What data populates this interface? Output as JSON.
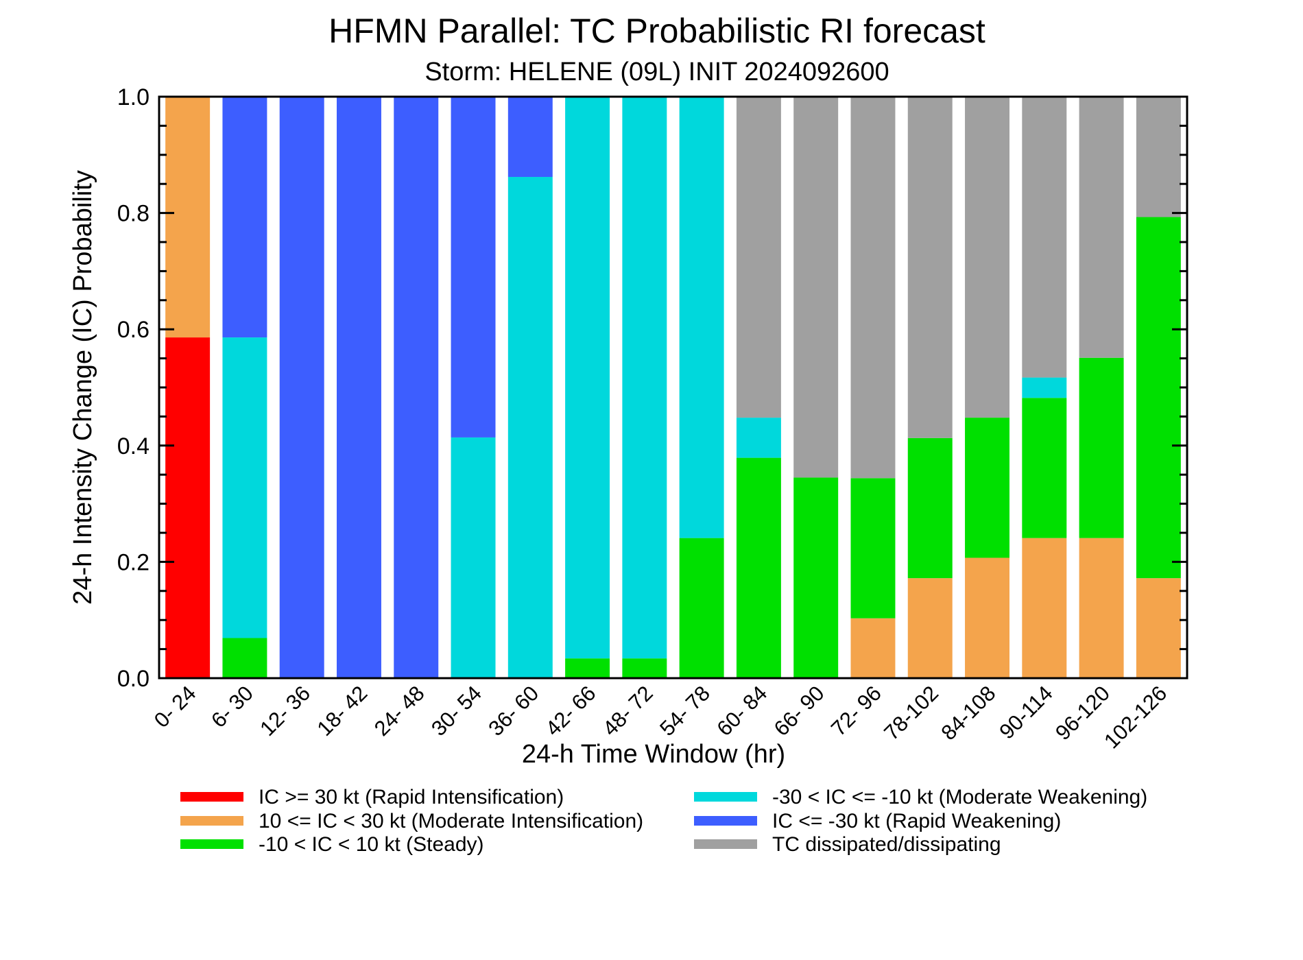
{
  "chart_data": {
    "type": "bar",
    "stacked": true,
    "title": "HFMN Parallel: TC Probabilistic RI forecast",
    "subtitle": "Storm: HELENE (09L) INIT 2024092600",
    "xlabel": "24-h Time Window (hr)",
    "ylabel": "24-h Intensity Change (IC) Probability",
    "ylim": [
      0,
      1
    ],
    "yticks": [
      "0.0",
      "0.2",
      "0.4",
      "0.6",
      "0.8",
      "1.0"
    ],
    "categories": [
      "0- 24",
      "6- 30",
      "12- 36",
      "18- 42",
      "24- 48",
      "30- 54",
      "36- 60",
      "42- 66",
      "48- 72",
      "54- 78",
      "60- 84",
      "66- 90",
      "72- 96",
      "78-102",
      "84-108",
      "90-114",
      "96-120",
      "102-126"
    ],
    "series": [
      {
        "name": "IC >= 30 kt (Rapid Intensification)",
        "color": "#ff0000",
        "values": [
          0.586,
          0,
          0,
          0,
          0,
          0,
          0,
          0,
          0,
          0,
          0,
          0,
          0,
          0,
          0,
          0,
          0,
          0
        ]
      },
      {
        "name": "10 <= IC < 30 kt (Moderate Intensification)",
        "color": "#f4a44c",
        "values": [
          0.414,
          0,
          0,
          0,
          0,
          0,
          0,
          0,
          0,
          0,
          0,
          0,
          0.103,
          0.172,
          0.207,
          0.241,
          0.241,
          0.172
        ]
      },
      {
        "name": "-10 < IC < 10 kt (Steady)",
        "color": "#00e000",
        "values": [
          0,
          0.069,
          0,
          0,
          0,
          0,
          0,
          0.034,
          0.034,
          0.241,
          0.379,
          0.345,
          0.241,
          0.241,
          0.241,
          0.241,
          0.31,
          0.621
        ]
      },
      {
        "name": "-30 < IC <= -10 kt (Moderate Weakening)",
        "color": "#00d8dc",
        "values": [
          0,
          0.517,
          0,
          0,
          0,
          0.414,
          0.862,
          0.966,
          0.966,
          0.759,
          0.069,
          0,
          0,
          0,
          0,
          0.035,
          0,
          0
        ]
      },
      {
        "name": "IC <= -30 kt (Rapid Weakening)",
        "color": "#3d5eff",
        "values": [
          0,
          0.414,
          1,
          1,
          1,
          0.586,
          0.138,
          0,
          0,
          0,
          0,
          0,
          0,
          0,
          0,
          0,
          0,
          0
        ]
      },
      {
        "name": "TC dissipated/dissipating",
        "color": "#a0a0a0",
        "values": [
          0,
          0,
          0,
          0,
          0,
          0,
          0,
          0,
          0,
          0,
          0.552,
          0.655,
          0.656,
          0.587,
          0.552,
          0.483,
          0.449,
          0.207
        ]
      }
    ]
  }
}
